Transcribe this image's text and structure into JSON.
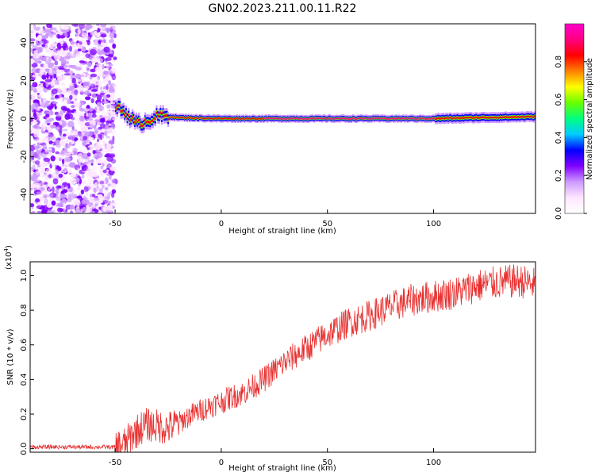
{
  "figure_title": "GN02.2023.211.00.11.R22",
  "chart_data": [
    {
      "type": "heatmap",
      "xlabel": "Height of straight line (km)",
      "ylabel": "Frequency (Hz)",
      "xlim": [
        -90,
        148
      ],
      "ylim": [
        -50,
        50
      ],
      "xticks": [
        -50,
        0,
        50,
        100
      ],
      "yticks": [
        -40,
        -20,
        0,
        20,
        40
      ],
      "grid": false,
      "colorbar": {
        "label": "Normalized spectral amplitude",
        "range": [
          0,
          1
        ],
        "ticks": [
          "0.0",
          "0.2",
          "0.4",
          "0.6",
          "0.8"
        ],
        "colors": [
          "#ffffff",
          "#ffe6ff",
          "#cc99ff",
          "#8000ff",
          "#0000ff",
          "#00ccff",
          "#00ff80",
          "#66ff00",
          "#ffff00",
          "#ff8000",
          "#ff0000",
          "#ff0080",
          "#ff00cc"
        ]
      },
      "ridge": [
        {
          "x": -50,
          "f": 6.5
        },
        {
          "x": -45,
          "f": 2.5
        },
        {
          "x": -40,
          "f": -3.0
        },
        {
          "x": -35,
          "f": -1.0
        },
        {
          "x": -30,
          "f": 1.5
        },
        {
          "x": -20,
          "f": 0.5
        },
        {
          "x": 0,
          "f": 0.0
        },
        {
          "x": 50,
          "f": 0.0
        },
        {
          "x": 100,
          "f": 0.0
        },
        {
          "x": 120,
          "f": 0.5
        },
        {
          "x": 148,
          "f": 1.0
        }
      ]
    },
    {
      "type": "line",
      "xlabel": "Height of straight line (km)",
      "ylabel": "SNR (10 * v/v)",
      "y_multiplier": "(x10",
      "y_multiplier_exp": "4",
      "y_multiplier_close": ")",
      "xlim": [
        -90,
        148
      ],
      "ylim": [
        -0.02,
        1.08
      ],
      "xticks": [
        -50,
        0,
        50,
        100
      ],
      "yticks": [
        "0.0",
        "0.2",
        "0.4",
        "0.6",
        "0.8",
        "1.0"
      ],
      "color": "#e83030",
      "grid": false,
      "series": [
        {
          "x": [
            -90,
            -80,
            -70,
            -60,
            -50,
            -45,
            -42,
            -38,
            -35,
            -30,
            -25,
            -20,
            -15,
            -10,
            -5,
            0,
            5,
            10,
            15,
            20,
            25,
            30,
            40,
            50,
            60,
            70,
            80,
            90,
            100,
            110,
            120,
            130,
            140,
            148
          ],
          "values": [
            0.01,
            0.01,
            0.01,
            0.01,
            0.01,
            0.03,
            0.08,
            0.12,
            0.14,
            0.13,
            0.12,
            0.15,
            0.19,
            0.22,
            0.25,
            0.27,
            0.3,
            0.32,
            0.36,
            0.4,
            0.45,
            0.5,
            0.58,
            0.66,
            0.73,
            0.77,
            0.82,
            0.86,
            0.88,
            0.9,
            0.94,
            0.96,
            0.97,
            0.95
          ]
        }
      ]
    }
  ]
}
